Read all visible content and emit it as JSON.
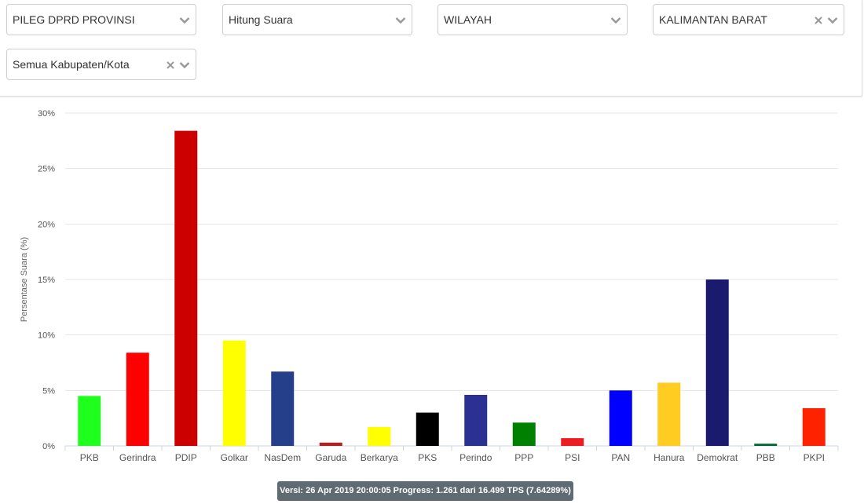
{
  "filters": {
    "election": {
      "value": "PILEG DPRD PROVINSI"
    },
    "data_type": {
      "value": "Hitung Suara"
    },
    "scope": {
      "value": "WILAYAH"
    },
    "province": {
      "value": "KALIMANTAN BARAT"
    },
    "regency": {
      "value": "Semua Kabupaten/Kota"
    }
  },
  "icons": {
    "dropdown": "chevron-down-icon",
    "clear": "close-icon"
  },
  "chart_data": {
    "type": "bar",
    "title": "",
    "xlabel": "",
    "ylabel": "Persentase Suara (%)",
    "ylim": [
      0,
      30
    ],
    "yticks": [
      "0%",
      "5%",
      "10%",
      "15%",
      "20%",
      "25%",
      "30%"
    ],
    "grid": true,
    "categories": [
      "PKB",
      "Gerindra",
      "PDIP",
      "Golkar",
      "NasDem",
      "Garuda",
      "Berkarya",
      "PKS",
      "Perindo",
      "PPP",
      "PSI",
      "PAN",
      "Hanura",
      "Demokrat",
      "PBB",
      "PKPI"
    ],
    "values": [
      4.5,
      8.4,
      28.4,
      9.5,
      6.7,
      0.3,
      1.7,
      3.0,
      4.6,
      2.1,
      0.7,
      5.0,
      5.7,
      15.0,
      0.2,
      3.4
    ],
    "colors": [
      "#1eff1e",
      "#ff0000",
      "#cc0000",
      "#ffff00",
      "#253f8a",
      "#b22222",
      "#ffff00",
      "#000000",
      "#2b3192",
      "#008000",
      "#ed1c24",
      "#0000ff",
      "#ffcc22",
      "#1a1a6e",
      "#006837",
      "#ff2200"
    ]
  },
  "status": {
    "text": "Versi: 26 Apr 2019 20:00:05 Progress: 1.261 dari 16.499 TPS (7.64289%)"
  }
}
